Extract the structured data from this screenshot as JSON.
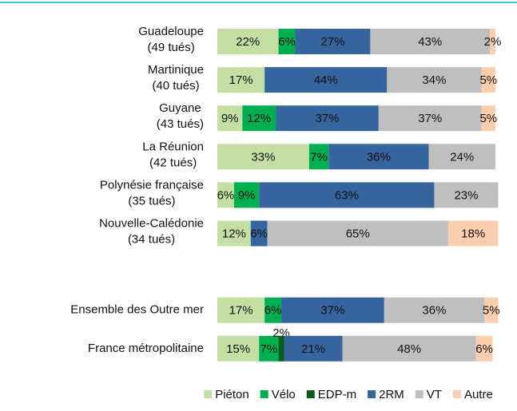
{
  "chart_data": {
    "type": "stacked-bar-horizontal",
    "categories": [
      [
        "Guadeloupe",
        "(49 tués)"
      ],
      [
        "Martinique",
        "(40 tués)"
      ],
      [
        "Guyane",
        "(43 tués)"
      ],
      [
        "La Réunion",
        "(42 tués)"
      ],
      [
        "Polynésie française",
        "(35 tués)"
      ],
      [
        "Nouvelle-Calédonie",
        "(34 tués)"
      ],
      null,
      [
        "Ensemble des Outre mer"
      ],
      [
        "France métropolitaine"
      ]
    ],
    "xlim": [
      0,
      100
    ],
    "series": [
      {
        "name": "Piéton",
        "color": "#c4dfa3",
        "values": [
          22,
          17,
          9,
          33,
          6,
          12,
          null,
          17,
          15
        ],
        "value_labels": [
          "22%",
          "17%",
          "9%",
          "33%",
          "6%",
          "12%",
          null,
          "17%",
          "15%"
        ]
      },
      {
        "name": "Vélo",
        "color": "#00b050",
        "values": [
          6,
          null,
          12,
          7,
          9,
          null,
          null,
          6,
          7
        ],
        "value_labels": [
          "6%",
          null,
          "12%",
          "7%",
          "9%",
          null,
          null,
          "6%",
          "7%"
        ]
      },
      {
        "name": "EDP-m",
        "color": "#0a5c1a",
        "values": [
          null,
          null,
          null,
          null,
          null,
          null,
          null,
          null,
          2
        ],
        "value_labels": [
          null,
          null,
          null,
          null,
          null,
          null,
          null,
          null,
          "2%"
        ]
      },
      {
        "name": "2RM",
        "color": "#36649f",
        "values": [
          27,
          44,
          37,
          36,
          63,
          6,
          null,
          37,
          21
        ],
        "value_labels": [
          "27%",
          "44%",
          "37%",
          "36%",
          "63%",
          "6%",
          null,
          "37%",
          "21%"
        ]
      },
      {
        "name": "VT",
        "color": "#bfbfbf",
        "values": [
          43,
          34,
          37,
          24,
          23,
          65,
          null,
          36,
          48
        ],
        "value_labels": [
          "43%",
          "34%",
          "37%",
          "24%",
          "23%",
          "65%",
          null,
          "36%",
          "48%"
        ]
      },
      {
        "name": "Autre",
        "color": "#fbcfae",
        "values": [
          2,
          5,
          5,
          null,
          null,
          18,
          null,
          5,
          6
        ],
        "value_labels": [
          "2%",
          "5%",
          "5%",
          null,
          null,
          "18%",
          null,
          "5%",
          "6%"
        ]
      }
    ]
  }
}
